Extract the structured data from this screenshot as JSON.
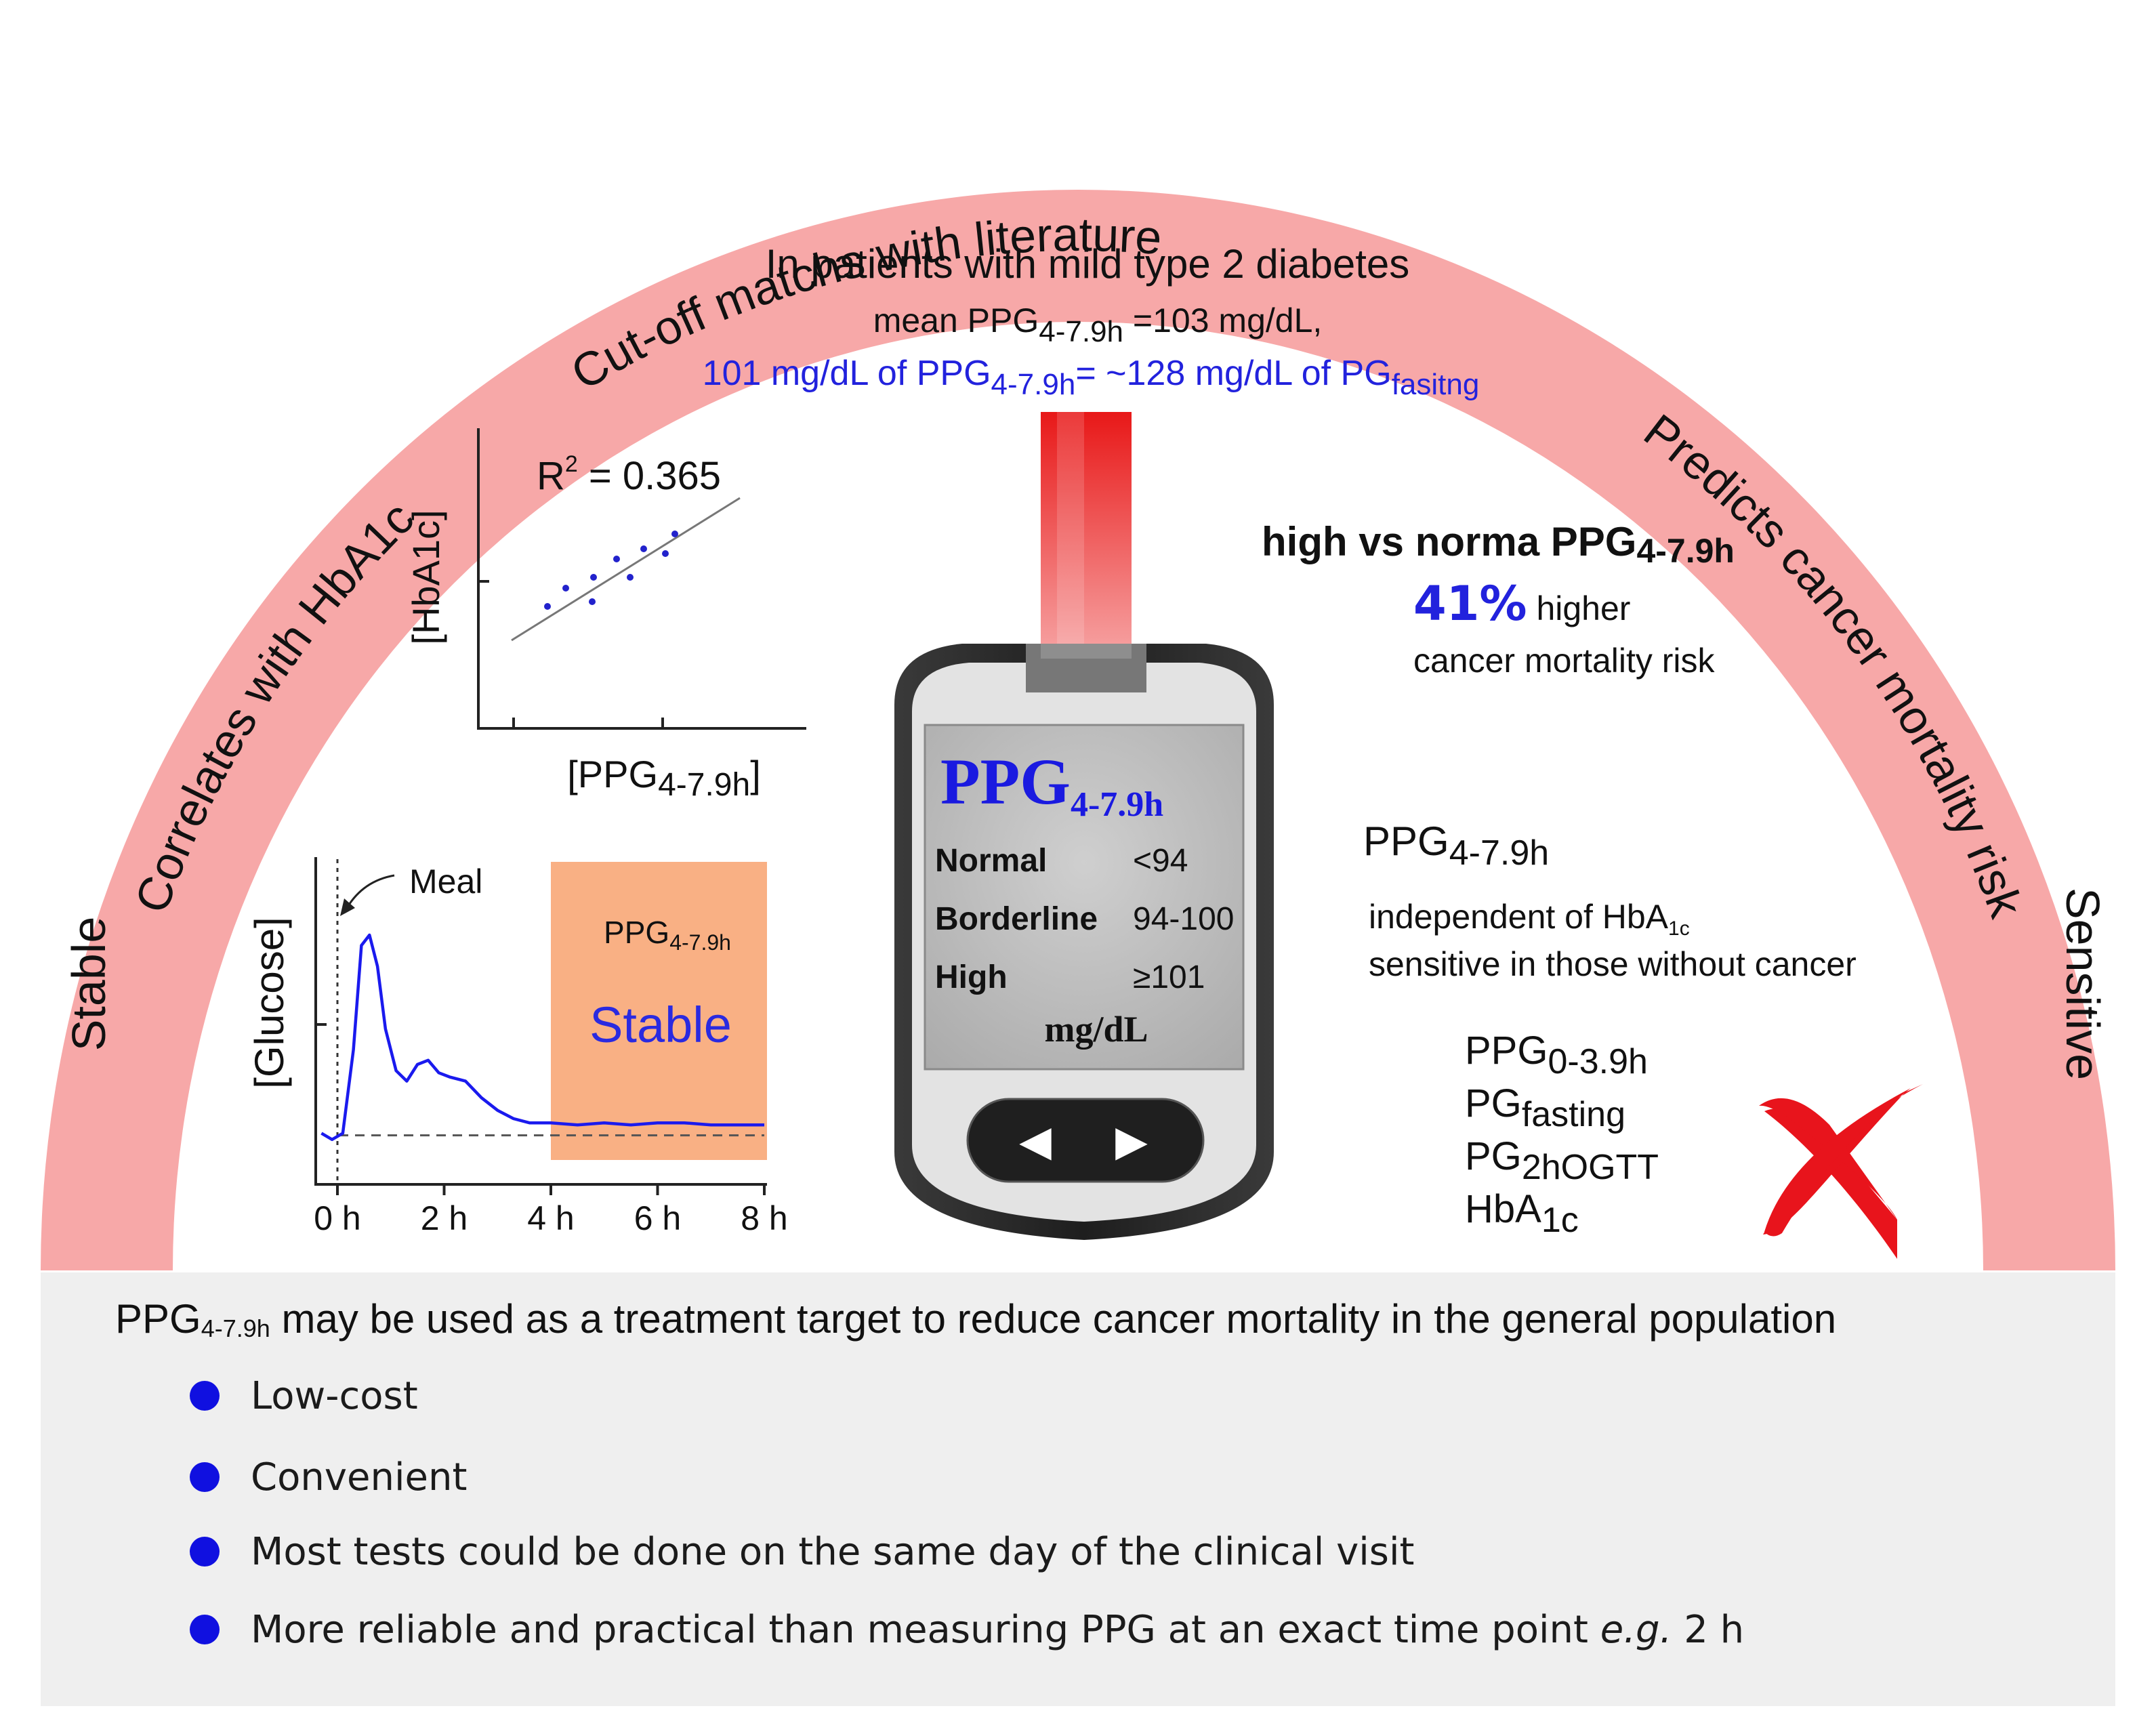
{
  "arc_labels": {
    "left": "Stable",
    "upper_left": "Correlates with HbA1c",
    "top": "Cut-off matchs with literature",
    "upper_right": "Predicts cancer  mortality risk",
    "right": "Sensitive"
  },
  "header": {
    "line1": "In patients with mild type 2 diabetes",
    "line2_prefix": "mean PPG",
    "line2_sub": "4-7.9h",
    "line2_suffix": " =103 mg/dL,",
    "line3_a": "101 mg/dL of PPG",
    "line3_sub1": "4-7.9h",
    "line3_b": "= ~128 mg/dL of PG",
    "line3_sub2": "fasitng"
  },
  "scatter": {
    "annotation_base": "R",
    "annotation_sup": "2",
    "annotation_rest": " = 0.365",
    "ylabel": "[HbA1c]",
    "xlabel_base": "[PPG",
    "xlabel_sub": "4-7.9h",
    "xlabel_end": "]"
  },
  "chart_data": {
    "type": "line",
    "ylabel": "[Glucose]",
    "x_ticks": [
      "0 h",
      "2 h",
      "4 h",
      "6 h",
      "8 h"
    ],
    "x_range": [
      0,
      8
    ],
    "annotation": "Meal",
    "highlight_label_base": "PPG",
    "highlight_label_sub": "4-7.9h",
    "highlight_text": "Stable",
    "highlight_range": [
      4,
      8
    ],
    "series_x": [
      -0.3,
      -0.1,
      0.1,
      0.3,
      0.45,
      0.6,
      0.75,
      0.9,
      1.1,
      1.3,
      1.5,
      1.7,
      1.9,
      2.1,
      2.4,
      2.7,
      3.0,
      3.3,
      3.6,
      4.0,
      4.5,
      5.0,
      5.5,
      6.0,
      6.5,
      7.0,
      7.5,
      8.0
    ],
    "series_y": [
      0.05,
      0.02,
      0.05,
      0.45,
      0.95,
      1.0,
      0.85,
      0.55,
      0.35,
      0.3,
      0.38,
      0.4,
      0.34,
      0.32,
      0.3,
      0.22,
      0.16,
      0.12,
      0.1,
      0.1,
      0.09,
      0.1,
      0.09,
      0.1,
      0.1,
      0.09,
      0.09,
      0.09
    ],
    "baseline": 0.04
  },
  "meter": {
    "title_base": "PPG",
    "title_sub": "4-7.9h",
    "rows": [
      {
        "label": "Normal",
        "value": "<94"
      },
      {
        "label": "Borderline",
        "value": "94-100"
      },
      {
        "label": "High",
        "value": "≥101"
      }
    ],
    "unit": "mg/dL",
    "left_button": "◀",
    "right_button": "▶"
  },
  "right_panel": {
    "risk_title_base": "high vs norma PPG",
    "risk_title_sub": "4-7.9h",
    "risk_pct": "41%",
    "risk_higher": " higher",
    "risk_line2": "cancer mortality risk",
    "ppg_base": "PPG",
    "ppg_sub": "4-7.9h",
    "indep_base": "independent of HbA",
    "indep_sub": "1c",
    "sensitive_line": "sensitive in those without cancer",
    "alternatives": [
      {
        "base": "PPG",
        "sub": "0-3.9h"
      },
      {
        "base": "PG",
        "sub": "fasting"
      },
      {
        "base": "PG",
        "sub": "2hOGTT"
      },
      {
        "base": "HbA",
        "sub": "1c"
      }
    ]
  },
  "bottom": {
    "title_base": "PPG",
    "title_sub": "4-7.9h",
    "title_rest": " may be used as a treatment target to reduce cancer mortality in the general population",
    "bullets": [
      {
        "text": "Low-cost"
      },
      {
        "text": "Convenient"
      },
      {
        "text": "Most tests could be done on the same day of the clinical visit"
      },
      {
        "text": "More reliable and practical than measuring PPG at an exact time point ",
        "em": "e.g.",
        "tail": " 2 h"
      }
    ]
  },
  "colors": {
    "arc": "#f7a8a8",
    "blue_text": "#2222dd",
    "orange_box": "#f9b084",
    "curve": "#1a1aee",
    "red_cross": "#e8141c",
    "meter_body": "#2b2b2b",
    "meter_screen": "#bfbfbf"
  }
}
